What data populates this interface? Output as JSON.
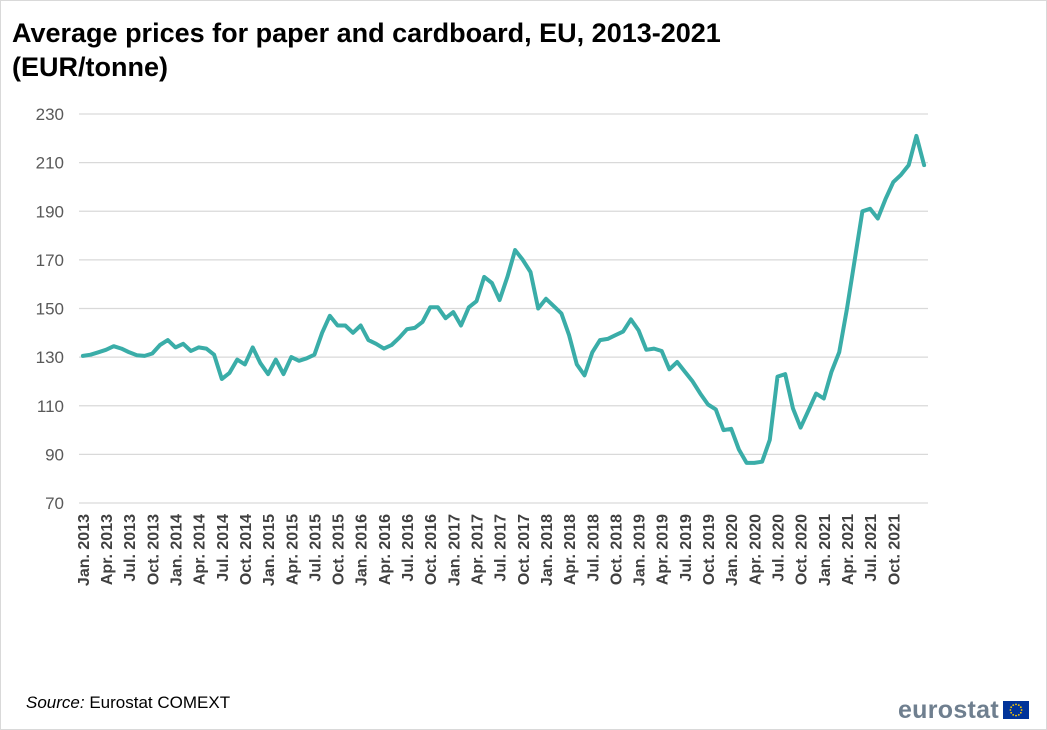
{
  "title": "Average prices for paper and cardboard, EU, 2013-2021 (EUR/tonne)",
  "source_label": "Source:",
  "source_text": "Eurostat COMEXT",
  "brand": "eurostat",
  "logo_icon": "eu-flag-icon",
  "colors": {
    "line": "#3aada8",
    "grid": "#d9d9d9",
    "brand": "#6f7f8f",
    "flag_blue": "#003399",
    "flag_star": "#ffcc00"
  },
  "chart_data": {
    "type": "line",
    "title": "Average prices for paper and cardboard, EU, 2013-2021 (EUR/tonne)",
    "xlabel": "",
    "ylabel": "",
    "ylim": [
      70,
      230
    ],
    "yticks": [
      70,
      90,
      110,
      130,
      150,
      170,
      190,
      210,
      230
    ],
    "grid": true,
    "x_tick_labels": [
      "Jan. 2013",
      "Apr. 2013",
      "Jul. 2013",
      "Oct. 2013",
      "Jan. 2014",
      "Apr. 2014",
      "Jul. 2014",
      "Oct. 2014",
      "Jan. 2015",
      "Apr. 2015",
      "Jul. 2015",
      "Oct. 2015",
      "Jan. 2016",
      "Apr. 2016",
      "Jul. 2016",
      "Oct. 2016",
      "Jan. 2017",
      "Apr. 2017",
      "Jul. 2017",
      "Oct. 2017",
      "Jan. 2018",
      "Apr. 2018",
      "Jul. 2018",
      "Oct. 2018",
      "Jan. 2019",
      "Apr. 2019",
      "Jul. 2019",
      "Oct. 2019",
      "Jan. 2020",
      "Apr. 2020",
      "Jul. 2020",
      "Oct. 2020",
      "Jan. 2021",
      "Apr. 2021",
      "Jul. 2021",
      "Oct. 2021"
    ],
    "x_tick_step": 3,
    "x_start": "Jan. 2013",
    "x_end": "Dec. 2021",
    "series": [
      {
        "values": [
          130.5,
          131,
          132,
          133,
          134.5,
          133.5,
          132,
          130.8,
          130.5,
          131.5,
          135,
          137,
          134,
          135.5,
          132.5,
          134,
          133.5,
          131,
          121,
          123.5,
          129,
          127,
          134,
          127.5,
          123,
          129,
          123,
          130,
          128.5,
          129.5,
          131,
          140,
          147,
          143,
          143,
          140,
          143,
          137,
          135.5,
          133.5,
          135,
          138,
          141.5,
          142,
          144.5,
          150.5,
          150.5,
          146,
          148.5,
          143,
          150.5,
          153,
          163,
          160.5,
          153.5,
          163,
          174,
          170,
          165,
          150,
          154,
          151,
          148,
          139,
          127,
          122.5,
          132,
          137,
          137.5,
          139,
          140.5,
          145.5,
          141,
          133,
          133.5,
          132.5,
          125,
          128,
          124,
          120,
          115,
          110.5,
          108.5,
          100,
          100.5,
          92,
          86.5,
          86.5,
          87,
          96,
          122,
          123,
          109,
          101,
          108,
          115,
          113,
          124,
          132,
          150,
          170,
          190,
          191,
          187,
          195,
          202,
          205,
          209,
          221,
          209
        ]
      }
    ]
  }
}
